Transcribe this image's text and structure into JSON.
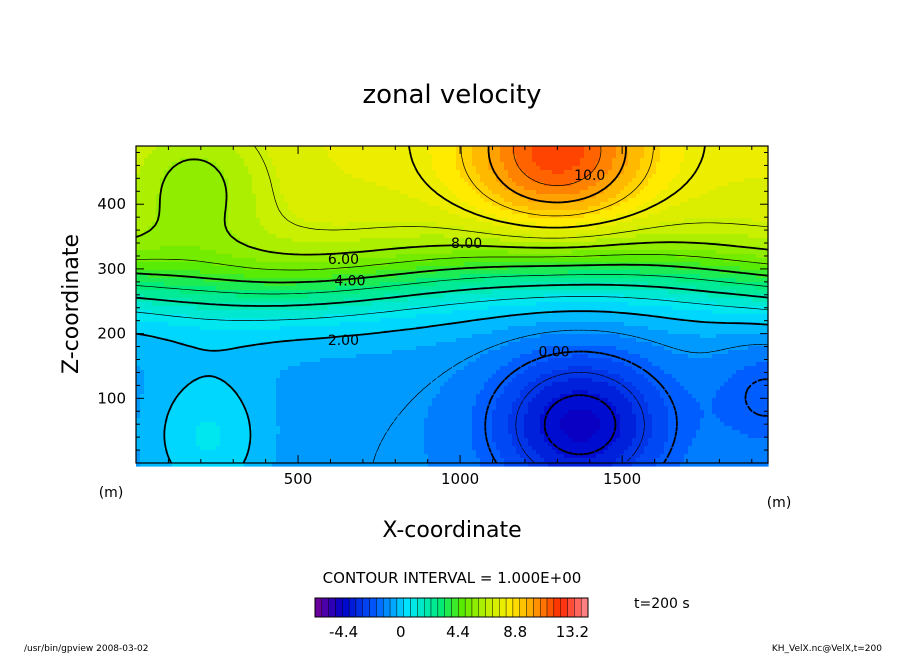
{
  "chart_data": {
    "type": "heatmap",
    "title": "zonal velocity",
    "xlabel": "X-coordinate",
    "ylabel": "Z-coordinate",
    "x_unit": "(m)",
    "y_unit": "(m)",
    "xlim": [
      0,
      1950
    ],
    "ylim": [
      0,
      490
    ],
    "x_ticks": [
      500,
      1000,
      1500
    ],
    "y_ticks": [
      100,
      200,
      300,
      400
    ],
    "contour_interval_text": "CONTOUR INTERVAL = 1.000E+00",
    "contour_labels": [
      {
        "text": "10.0",
        "x": 1400,
        "y": 445
      },
      {
        "text": "8.00",
        "x": 1020,
        "y": 340
      },
      {
        "text": "6.00",
        "x": 640,
        "y": 315
      },
      {
        "text": "4.00",
        "x": 660,
        "y": 282
      },
      {
        "text": "2.00",
        "x": 640,
        "y": 190
      },
      {
        "text": "0.00",
        "x": 1290,
        "y": 172
      }
    ],
    "time_label": "t=200 s",
    "colorbar": {
      "min": -6.6,
      "max": 14.4,
      "ticks": [
        "-4.4",
        "0",
        "4.4",
        "8.8",
        "13.2"
      ],
      "tick_values": [
        -4.4,
        0,
        4.4,
        8.8,
        13.2
      ]
    }
  },
  "footer": {
    "left": "/usr/bin/gpview  2008-03-02",
    "right": "KH_VelX.nc@VelX,t=200"
  }
}
